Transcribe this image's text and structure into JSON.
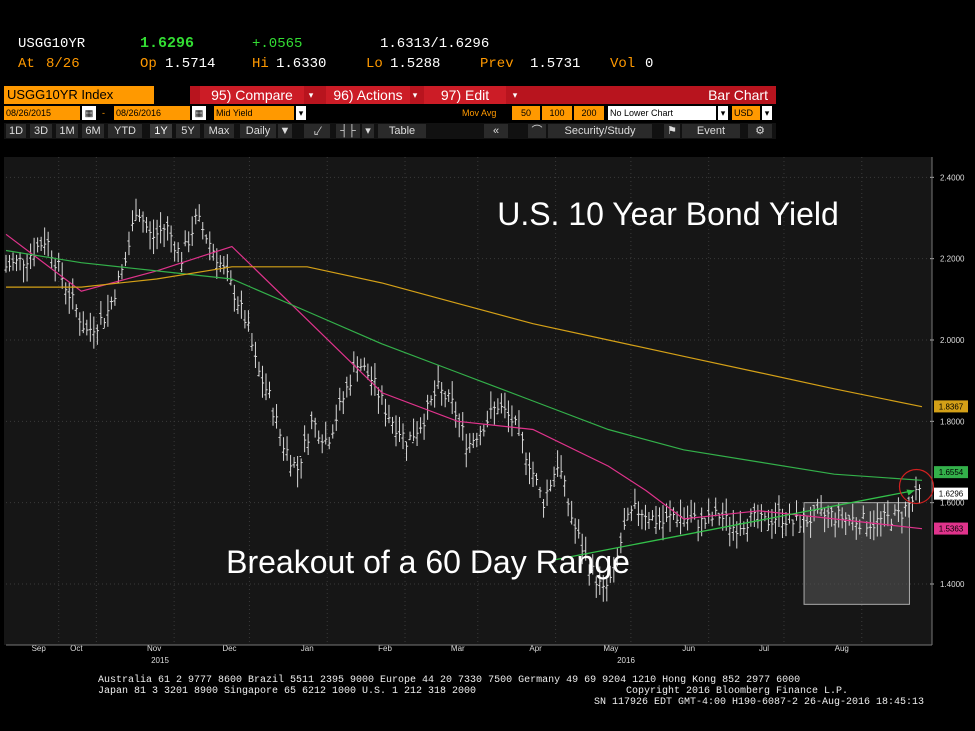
{
  "quote": {
    "ticker": "USGG10YR",
    "last": "1.6296",
    "change": "+.0565",
    "bid_ask": "1.6313/1.6296",
    "at_label": "At",
    "at_value": "8/26",
    "open_label": "Op",
    "open_value": "1.5714",
    "high_label": "Hi",
    "high_value": "1.6330",
    "low_label": "Lo",
    "low_value": "1.5288",
    "prev_label": "Prev",
    "prev_value": "1.5731",
    "vol_label": "Vol",
    "vol_value": "0"
  },
  "toolbar": {
    "index_label": "USGG10YR Index",
    "compare_label": "95) Compare",
    "actions_label": "96) Actions",
    "edit_label": "97) Edit",
    "view_label": "Bar Chart",
    "start_date": "08/26/2015",
    "end_date": "08/26/2016",
    "price_field": "Mid Yield",
    "mov_avg_label": "Mov Avg",
    "mov_avg_1": "50",
    "mov_avg_2": "100",
    "mov_avg_3": "200",
    "lower_chart": "No Lower Chart",
    "currency": "USD",
    "periods": [
      "1D",
      "3D",
      "1M",
      "6M",
      "YTD",
      "1Y",
      "5Y",
      "Max"
    ],
    "active_period": "1Y",
    "frequency": "Daily",
    "table_label": "Table",
    "security_label": "Security/Study",
    "event_label": "Event"
  },
  "chart_data": {
    "type": "bar",
    "title": "U.S. 10 Year Bond Yield",
    "annotation": "Breakout of a 60 Day Range",
    "y_ticks": [
      "2.4000",
      "2.2000",
      "2.0000",
      "1.8000",
      "1.6000",
      "1.4000"
    ],
    "ylim": [
      1.25,
      2.45
    ],
    "x_ticks": [
      "Sep",
      "Oct",
      "Nov",
      "Dec",
      "Jan",
      "Feb",
      "Mar",
      "Apr",
      "May",
      "Jun",
      "Jul",
      "Aug"
    ],
    "year_labels": [
      "2015",
      "2016"
    ],
    "grid": "on",
    "price_series": {
      "x": [
        0,
        8,
        16,
        24,
        32,
        40,
        48,
        52,
        58,
        64,
        70,
        76,
        82,
        90,
        96,
        100,
        105,
        110,
        116,
        122,
        128,
        134,
        140,
        146,
        152,
        160,
        166,
        172,
        178,
        184,
        190,
        196,
        202,
        208,
        214,
        220,
        226,
        232,
        238,
        242,
        246,
        250,
        254,
        258,
        262,
        266,
        272,
        278,
        284,
        290,
        296,
        302,
        308,
        314,
        320,
        328,
        336,
        346,
        356,
        365
      ],
      "y": [
        2.18,
        2.2,
        2.25,
        2.13,
        2.02,
        2.06,
        2.2,
        2.33,
        2.25,
        2.28,
        2.2,
        2.3,
        2.23,
        2.13,
        2.04,
        1.93,
        1.86,
        1.75,
        1.68,
        1.8,
        1.75,
        1.85,
        1.95,
        1.9,
        1.82,
        1.75,
        1.8,
        1.88,
        1.84,
        1.74,
        1.79,
        1.84,
        1.8,
        1.71,
        1.6,
        1.7,
        1.55,
        1.45,
        1.38,
        1.42,
        1.53,
        1.58,
        1.58,
        1.56,
        1.55,
        1.57,
        1.56,
        1.55,
        1.57,
        1.54,
        1.56,
        1.55,
        1.57,
        1.55,
        1.56,
        1.57,
        1.56,
        1.55,
        1.57,
        1.6296
      ]
    },
    "series": [
      {
        "name": "50",
        "color": "#e0338c",
        "x": [
          0,
          30,
          60,
          90,
          120,
          150,
          180,
          210,
          240,
          255,
          270,
          300,
          330,
          365
        ],
        "y": [
          2.26,
          2.12,
          2.17,
          2.23,
          2.05,
          1.87,
          1.8,
          1.78,
          1.69,
          1.63,
          1.56,
          1.58,
          1.56,
          1.536
        ]
      },
      {
        "name": "100",
        "color": "#33b04a",
        "x": [
          0,
          30,
          60,
          90,
          120,
          150,
          180,
          210,
          240,
          270,
          300,
          330,
          365
        ],
        "y": [
          2.22,
          2.19,
          2.17,
          2.15,
          2.07,
          1.99,
          1.92,
          1.85,
          1.78,
          1.73,
          1.7,
          1.67,
          1.655
        ]
      },
      {
        "name": "200",
        "color": "#d4a017",
        "x": [
          0,
          30,
          60,
          90,
          120,
          150,
          180,
          210,
          240,
          270,
          300,
          330,
          365
        ],
        "y": [
          2.13,
          2.13,
          2.15,
          2.18,
          2.18,
          2.14,
          2.09,
          2.04,
          2.0,
          1.96,
          1.92,
          1.88,
          1.836
        ]
      }
    ],
    "y_markers": [
      {
        "label": "1.8367",
        "value": 1.8367,
        "color": "#d4a017"
      },
      {
        "label": "1.6554",
        "value": 1.6554,
        "color": "#33b04a"
      },
      {
        "label": "1.6296",
        "value": 1.6296,
        "color": "#ffffff"
      },
      {
        "label": "1.5363",
        "value": 1.5363,
        "color": "#e0338c"
      }
    ],
    "range_box": {
      "x_start": 318,
      "x_end": 360,
      "y_high": 1.6,
      "y_low": 1.35
    },
    "trend_line": {
      "x": [
        258,
        362
      ],
      "y": [
        1.513,
        1.63
      ]
    }
  },
  "footer": {
    "line1": "Australia 61 2 9777 8600 Brazil 5511 2395 9000 Europe 44 20 7330 7500 Germany 49 69 9204 1210 Hong Kong 852 2977 6000",
    "line2a": "Japan 81 3 3201 8900         Singapore 65 6212 1000        U.S. 1 212 318 2000",
    "line2b": "Copyright 2016 Bloomberg Finance L.P.",
    "line3": "SN 117926 EDT  GMT-4:00 H190-6087-2 26-Aug-2016 18:45:13"
  }
}
